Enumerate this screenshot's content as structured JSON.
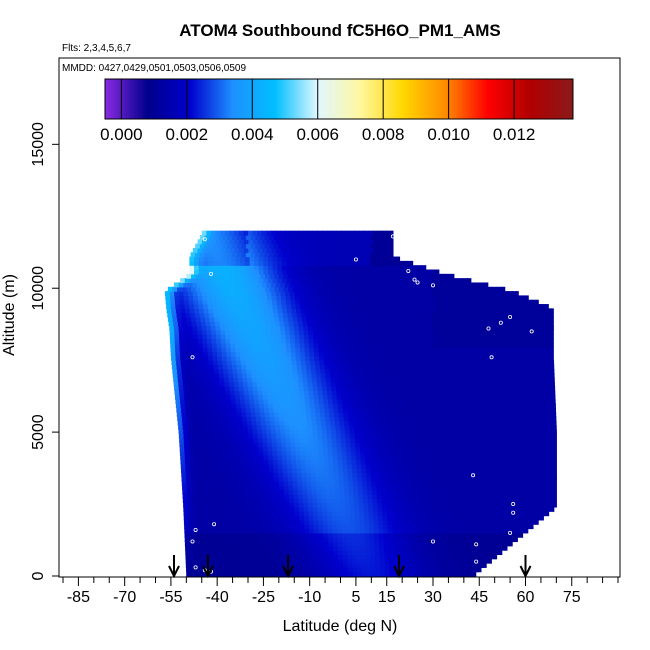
{
  "chart_data": {
    "type": "heatmap",
    "title": "ATOM4 Southbound fC5H6O_PM1_AMS",
    "flights_note": "Flts: 2,3,4,5,6,7",
    "dates_note": "MMDD: 0427,0429,0501,0503,0506,0509",
    "xlabel": "Latitude (deg N)",
    "ylabel": "Altitude (m)",
    "xlim": [
      -90,
      90
    ],
    "ylim": [
      0,
      18000
    ],
    "x_ticks": [
      -85,
      -70,
      -55,
      -40,
      -25,
      -10,
      5,
      15,
      30,
      45,
      60,
      75
    ],
    "x_minor_ticks": [
      -90,
      -80,
      -75,
      -65,
      -60,
      -50,
      -45,
      -35,
      -30,
      -20,
      -15,
      -5,
      0,
      10,
      20,
      25,
      35,
      40,
      50,
      55,
      65,
      70,
      80,
      85,
      90
    ],
    "y_ticks": [
      0,
      5000,
      10000,
      15000
    ],
    "colorbar": {
      "min": -0.0005,
      "max": 0.0138,
      "ticks": [
        "0.000",
        "0.002",
        "0.004",
        "0.006",
        "0.008",
        "0.010",
        "0.012"
      ],
      "tick_values": [
        0,
        0.002,
        0.004,
        0.006,
        0.008,
        0.01,
        0.012
      ],
      "colors": [
        "#8a2be2",
        "#00008b",
        "#0000cd",
        "#1e90ff",
        "#00bfff",
        "#e0f7ff",
        "#fff7a0",
        "#ffd700",
        "#ff8c00",
        "#ff0000",
        "#b00000",
        "#8b1a1a"
      ]
    },
    "coverage_envelope": {
      "altitude": [
        0,
        2400,
        5000,
        7600,
        8600,
        9300,
        9900,
        10500,
        11100,
        11900
      ],
      "lat_south": [
        -50,
        -51,
        -52.5,
        -55,
        -55.5,
        -56.5,
        -57,
        -49,
        -49,
        -45
      ],
      "lat_north": [
        43,
        70,
        70,
        69,
        69,
        69,
        56,
        34,
        17,
        17
      ]
    },
    "profile_latitudes": [
      -54,
      -43,
      -17,
      19,
      60
    ],
    "flight_points": [
      {
        "lat": -48,
        "alt": 1200
      },
      {
        "lat": -47,
        "alt": 1600
      },
      {
        "lat": -41,
        "alt": 1800
      },
      {
        "lat": -48,
        "alt": 7600
      },
      {
        "lat": -42,
        "alt": 10500
      },
      {
        "lat": -44,
        "alt": 11700
      },
      {
        "lat": 5,
        "alt": 11000
      },
      {
        "lat": 17,
        "alt": 11800
      },
      {
        "lat": 22,
        "alt": 10600
      },
      {
        "lat": 24,
        "alt": 10300
      },
      {
        "lat": 25,
        "alt": 10200
      },
      {
        "lat": 30,
        "alt": 10100
      },
      {
        "lat": 48,
        "alt": 8600
      },
      {
        "lat": 52,
        "alt": 8800
      },
      {
        "lat": 55,
        "alt": 9000
      },
      {
        "lat": 62,
        "alt": 8500
      },
      {
        "lat": 70,
        "alt": 8400
      },
      {
        "lat": 49,
        "alt": 7600
      },
      {
        "lat": 43,
        "alt": 3500
      },
      {
        "lat": 56,
        "alt": 2500
      },
      {
        "lat": 56,
        "alt": 2200
      },
      {
        "lat": 55,
        "alt": 1500
      },
      {
        "lat": 71,
        "alt": 2400
      },
      {
        "lat": 44,
        "alt": 1100
      },
      {
        "lat": 30,
        "alt": 1200
      },
      {
        "lat": 44,
        "alt": 500
      },
      {
        "lat": 55,
        "alt": 700
      },
      {
        "lat": -44,
        "alt": 200
      },
      {
        "lat": -42,
        "alt": 150
      },
      {
        "lat": -47,
        "alt": 300
      }
    ],
    "value_model": {
      "background": 0.0013,
      "plume_peak": 0.0045,
      "plume_lat_at_top": -44,
      "plume_lat_at_bottom": 10,
      "plume_width_deg": 18,
      "south_edge_band": 0.0048,
      "upper_edge_value": 0.0002
    }
  }
}
